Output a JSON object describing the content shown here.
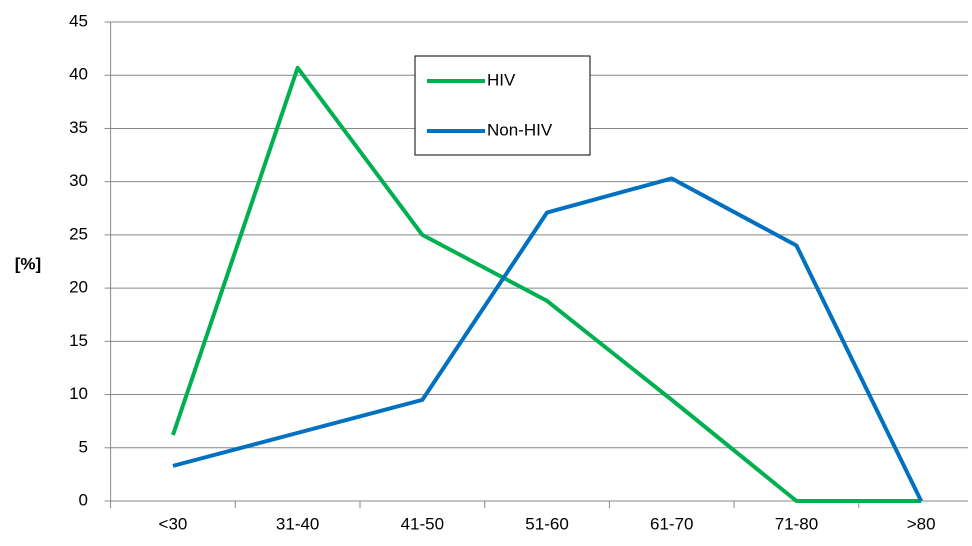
{
  "chart_data": {
    "type": "line",
    "y_label": "[%]",
    "categories": [
      "<30",
      "31-40",
      "41-50",
      "51-60",
      "61-70",
      "71-80",
      ">80"
    ],
    "series": [
      {
        "name": "HIV",
        "color": "#00b050",
        "values": [
          6.2,
          40.7,
          25.0,
          18.8,
          9.5,
          0,
          0
        ]
      },
      {
        "name": "Non-HIV",
        "color": "#0070c0",
        "values": [
          3.3,
          6.4,
          9.5,
          27.1,
          30.3,
          24.0,
          0
        ]
      }
    ],
    "ylim": [
      0,
      45
    ],
    "yticks": [
      0,
      5,
      10,
      15,
      20,
      25,
      30,
      35,
      40,
      45
    ],
    "grid": true,
    "legend": "top-center"
  }
}
